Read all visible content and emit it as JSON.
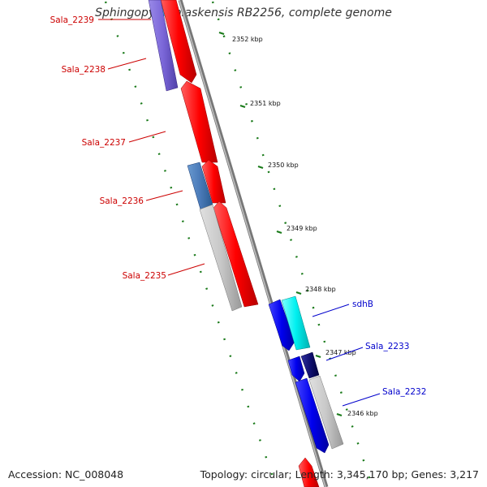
{
  "title": "Sphingopyxis alaskensis RB2256, complete genome",
  "footer": {
    "accession_label": "Accession:",
    "accession_value": "NC_008048",
    "topology": "Topology: circular; Length: 3,345,170 bp; Genes: 3,217"
  },
  "colors": {
    "forward_gene": "#ff0000",
    "reverse_gene": "#0000ff",
    "backbone": "#888888",
    "ticks": "#1a7a1a",
    "label_red": "#cc0000",
    "label_blue": "#0000cc"
  },
  "ticks": [
    {
      "label": "2352 kbp"
    },
    {
      "label": "2351 kbp"
    },
    {
      "label": "2350 kbp"
    },
    {
      "label": "2349 kbp"
    },
    {
      "label": "2348 kbp"
    },
    {
      "label": "2347 kbp"
    },
    {
      "label": "2346 kbp"
    }
  ],
  "gene_labels": {
    "left": [
      "Sala_2239",
      "Sala_2238",
      "Sala_2237",
      "Sala_2236",
      "Sala_2235"
    ],
    "right": [
      "sdhB",
      "Sala_2233",
      "Sala_2232"
    ]
  }
}
